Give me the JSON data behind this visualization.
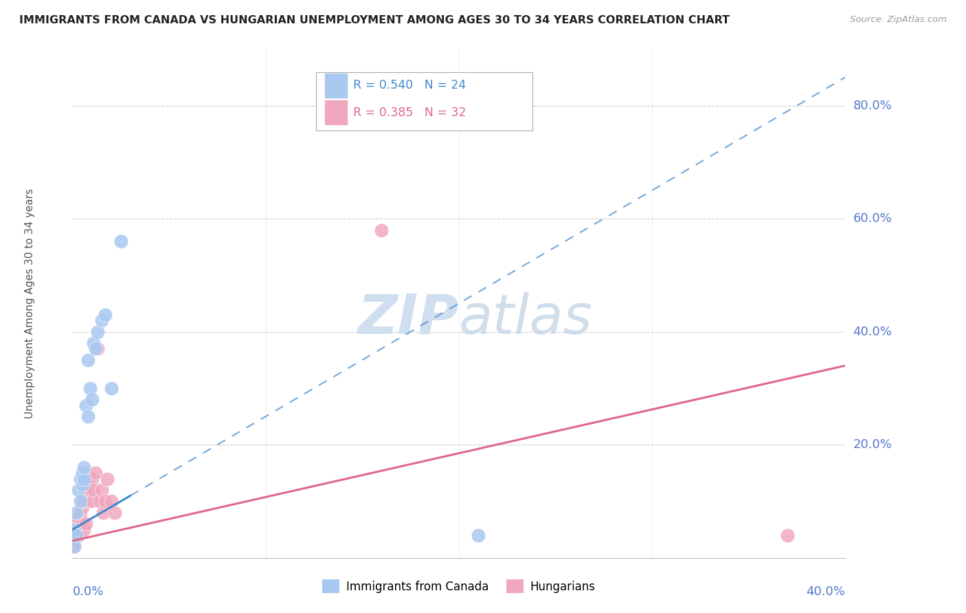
{
  "title": "IMMIGRANTS FROM CANADA VS HUNGARIAN UNEMPLOYMENT AMONG AGES 30 TO 34 YEARS CORRELATION CHART",
  "source": "Source: ZipAtlas.com",
  "ylabel": "Unemployment Among Ages 30 to 34 years",
  "right_yticks": [
    "80.0%",
    "60.0%",
    "40.0%",
    "20.0%"
  ],
  "right_ytick_vals": [
    0.8,
    0.6,
    0.4,
    0.2
  ],
  "legend_blue_R": "0.540",
  "legend_blue_N": "24",
  "legend_pink_R": "0.385",
  "legend_pink_N": "32",
  "legend_label_blue": "Immigrants from Canada",
  "legend_label_pink": "Hungarians",
  "blue_color": "#a8c8f0",
  "pink_color": "#f0a8c0",
  "trend_blue_color": "#4488cc",
  "trend_pink_color": "#e06888",
  "axis_label_color": "#5577cc",
  "title_color": "#222222",
  "grid_color": "#cccccc",
  "watermark_color": "#d0dff0",
  "blue_scatter_x": [
    0.001,
    0.001,
    0.002,
    0.002,
    0.003,
    0.004,
    0.004,
    0.005,
    0.005,
    0.006,
    0.006,
    0.007,
    0.008,
    0.008,
    0.009,
    0.01,
    0.011,
    0.012,
    0.013,
    0.015,
    0.017,
    0.02,
    0.025,
    0.21
  ],
  "blue_scatter_y": [
    0.02,
    0.05,
    0.04,
    0.08,
    0.12,
    0.1,
    0.14,
    0.13,
    0.15,
    0.14,
    0.16,
    0.27,
    0.25,
    0.35,
    0.3,
    0.28,
    0.38,
    0.37,
    0.4,
    0.42,
    0.43,
    0.3,
    0.56,
    0.04
  ],
  "pink_scatter_x": [
    0.001,
    0.001,
    0.001,
    0.002,
    0.002,
    0.003,
    0.003,
    0.004,
    0.004,
    0.005,
    0.005,
    0.006,
    0.006,
    0.007,
    0.007,
    0.008,
    0.008,
    0.009,
    0.01,
    0.01,
    0.011,
    0.012,
    0.013,
    0.014,
    0.015,
    0.016,
    0.017,
    0.018,
    0.02,
    0.022,
    0.16,
    0.37
  ],
  "pink_scatter_y": [
    0.02,
    0.03,
    0.04,
    0.05,
    0.06,
    0.04,
    0.07,
    0.05,
    0.08,
    0.06,
    0.09,
    0.05,
    0.1,
    0.06,
    0.12,
    0.1,
    0.14,
    0.12,
    0.1,
    0.14,
    0.12,
    0.15,
    0.37,
    0.1,
    0.12,
    0.08,
    0.1,
    0.14,
    0.1,
    0.08,
    0.58,
    0.04
  ],
  "xlim": [
    0.0,
    0.4
  ],
  "ylim": [
    0.0,
    0.9
  ],
  "trend_blue_x0": 0.0,
  "trend_blue_y0": 0.05,
  "trend_blue_x1": 0.4,
  "trend_blue_y1": 0.85,
  "trend_pink_x0": 0.0,
  "trend_pink_y0": 0.03,
  "trend_pink_x1": 0.4,
  "trend_pink_y1": 0.34
}
